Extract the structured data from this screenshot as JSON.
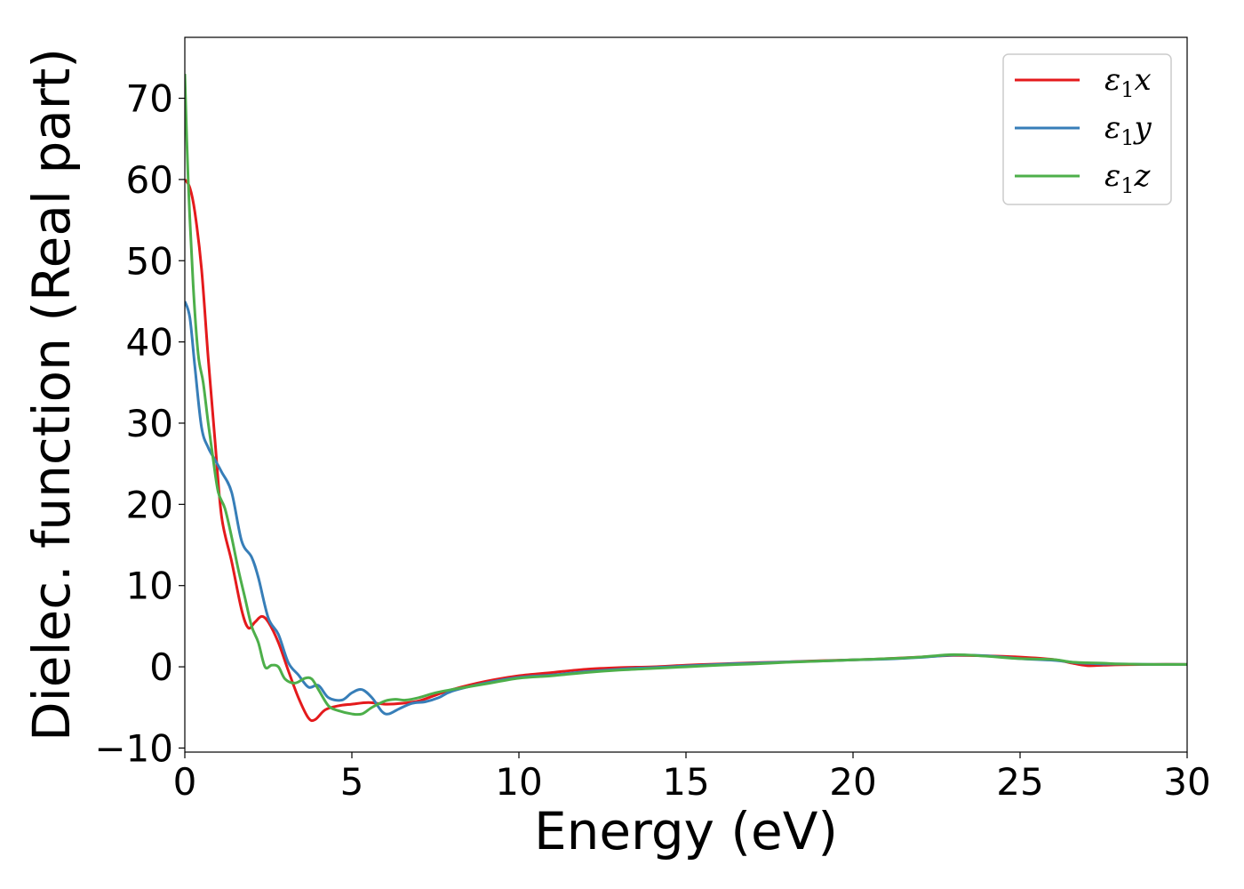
{
  "chart_data": {
    "type": "line",
    "xlabel": "Energy (eV)",
    "ylabel": "Dielec. function (Real part)",
    "xlim": [
      0,
      30
    ],
    "ylim": [
      -10.5,
      77.5
    ],
    "xticks": [
      0,
      5,
      10,
      15,
      20,
      25,
      30
    ],
    "yticks": [
      -10,
      0,
      10,
      20,
      30,
      40,
      50,
      60,
      70
    ],
    "xtick_labels": [
      "0",
      "5",
      "10",
      "15",
      "20",
      "25",
      "30"
    ],
    "ytick_labels": [
      "−10",
      "0",
      "10",
      "20",
      "30",
      "40",
      "50",
      "60",
      "70"
    ],
    "grid": false,
    "legend_position": "top-right",
    "series": [
      {
        "name": "ε1x",
        "symbol": "ε",
        "sub": "1",
        "axis": "x",
        "color": "#e41a1c",
        "x": [
          0,
          0.15,
          0.3,
          0.5,
          0.7,
          0.9,
          1.1,
          1.4,
          1.7,
          1.9,
          2.1,
          2.3,
          2.5,
          2.8,
          3.1,
          3.4,
          3.7,
          3.9,
          4.2,
          4.6,
          5.0,
          5.5,
          6.0,
          6.5,
          7.0,
          7.5,
          8.0,
          9.0,
          10.0,
          11.0,
          12.0,
          13.0,
          14.0,
          15.0,
          16.0,
          17.0,
          18.0,
          19.0,
          20.0,
          21.0,
          22.0,
          23.0,
          24.0,
          25.0,
          26.0,
          26.5,
          27.0,
          27.5,
          28.0,
          29.0,
          30.0
        ],
        "y": [
          60.0,
          59.0,
          56.0,
          49.0,
          38.0,
          28.0,
          18.5,
          13.0,
          7.0,
          4.8,
          5.5,
          6.2,
          5.5,
          3.0,
          -0.5,
          -3.8,
          -6.3,
          -6.5,
          -5.3,
          -4.8,
          -4.6,
          -4.4,
          -4.6,
          -4.5,
          -4.2,
          -3.5,
          -2.8,
          -1.8,
          -1.1,
          -0.7,
          -0.3,
          -0.1,
          0.0,
          0.2,
          0.35,
          0.5,
          0.6,
          0.75,
          0.85,
          1.0,
          1.2,
          1.4,
          1.35,
          1.2,
          0.9,
          0.5,
          0.15,
          0.2,
          0.25,
          0.3,
          0.3
        ]
      },
      {
        "name": "ε1y",
        "symbol": "ε",
        "sub": "1",
        "axis": "y",
        "color": "#377eb8",
        "x": [
          0,
          0.15,
          0.3,
          0.5,
          0.7,
          0.9,
          1.1,
          1.4,
          1.7,
          2.0,
          2.2,
          2.5,
          2.8,
          3.1,
          3.4,
          3.7,
          4.0,
          4.3,
          4.7,
          5.0,
          5.3,
          5.6,
          5.9,
          6.1,
          6.4,
          6.8,
          7.2,
          7.6,
          8.0,
          9.0,
          10.0,
          11.0,
          12.0,
          13.0,
          14.0,
          15.0,
          16.0,
          17.0,
          18.0,
          19.0,
          20.0,
          21.0,
          22.0,
          23.0,
          24.0,
          25.0,
          26.0,
          26.7,
          27.2,
          27.5,
          28.0,
          29.0,
          30.0
        ],
        "y": [
          45.0,
          43.0,
          37.0,
          29.5,
          27.0,
          25.5,
          24.0,
          21.5,
          15.5,
          13.5,
          11.0,
          6.0,
          4.0,
          0.5,
          -1.0,
          -2.5,
          -2.3,
          -3.8,
          -4.1,
          -3.2,
          -2.8,
          -3.8,
          -5.5,
          -5.8,
          -5.2,
          -4.5,
          -4.3,
          -3.8,
          -3.0,
          -2.0,
          -1.3,
          -1.0,
          -0.6,
          -0.3,
          -0.1,
          0.1,
          0.3,
          0.45,
          0.6,
          0.7,
          0.85,
          0.95,
          1.15,
          1.45,
          1.35,
          1.0,
          0.8,
          0.5,
          0.4,
          0.35,
          0.35,
          0.3,
          0.3
        ]
      },
      {
        "name": "ε1z",
        "symbol": "ε",
        "sub": "1",
        "axis": "z",
        "color": "#4daf4a",
        "x": [
          0,
          0.1,
          0.25,
          0.4,
          0.55,
          0.7,
          0.85,
          1.0,
          1.2,
          1.4,
          1.6,
          1.8,
          2.0,
          2.2,
          2.4,
          2.6,
          2.8,
          3.0,
          3.3,
          3.6,
          3.8,
          4.0,
          4.3,
          4.6,
          5.0,
          5.3,
          5.6,
          6.0,
          6.3,
          6.6,
          7.0,
          7.5,
          8.0,
          9.0,
          10.0,
          11.0,
          12.0,
          13.0,
          14.0,
          15.0,
          16.0,
          17.0,
          18.0,
          19.0,
          20.0,
          21.0,
          22.0,
          23.0,
          24.0,
          25.0,
          26.0,
          26.5,
          27.0,
          27.5,
          28.0,
          29.0,
          30.0
        ],
        "y": [
          73.0,
          60.0,
          47.0,
          38.5,
          35.0,
          30.0,
          25.5,
          21.5,
          19.5,
          16.0,
          12.0,
          8.5,
          5.0,
          3.0,
          0.0,
          0.2,
          0.0,
          -1.5,
          -2.0,
          -1.4,
          -1.5,
          -2.8,
          -4.8,
          -5.4,
          -5.8,
          -5.8,
          -5.0,
          -4.2,
          -4.0,
          -4.1,
          -3.8,
          -3.2,
          -2.8,
          -2.1,
          -1.4,
          -1.1,
          -0.7,
          -0.4,
          -0.2,
          0.0,
          0.2,
          0.35,
          0.55,
          0.7,
          0.85,
          1.0,
          1.2,
          1.5,
          1.3,
          1.0,
          0.9,
          0.6,
          0.5,
          0.45,
          0.35,
          0.3,
          0.3
        ]
      }
    ]
  }
}
